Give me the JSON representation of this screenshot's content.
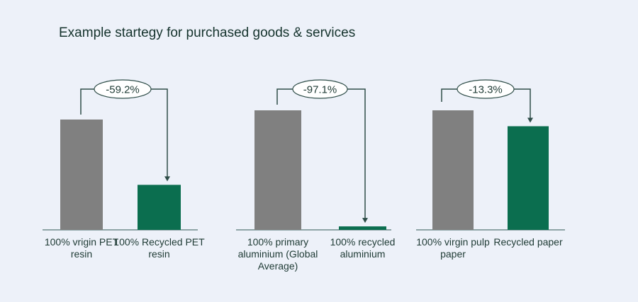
{
  "title": "Example startegy for purchased goods & services",
  "colors": {
    "virgin": "#808080",
    "recycled": "#0b6e4f",
    "annotation": "#2e4d48",
    "baseline": "#6e8a8a"
  },
  "chart_data": [
    {
      "type": "bar",
      "categories": [
        "100%  vrigin PET resin",
        "100% Recycled PET resin"
      ],
      "values": [
        100,
        40.8
      ],
      "change_label": "-59.2%"
    },
    {
      "type": "bar",
      "categories": [
        "100%  primary aluminium (Global Average)",
        "100% recycled aluminium"
      ],
      "values": [
        100,
        2.9
      ],
      "change_label": "-97.1%"
    },
    {
      "type": "bar",
      "categories": [
        "100%  virgin pulp paper",
        "Recycled paper"
      ],
      "values": [
        100,
        86.7
      ],
      "change_label": "-13.3%"
    }
  ]
}
